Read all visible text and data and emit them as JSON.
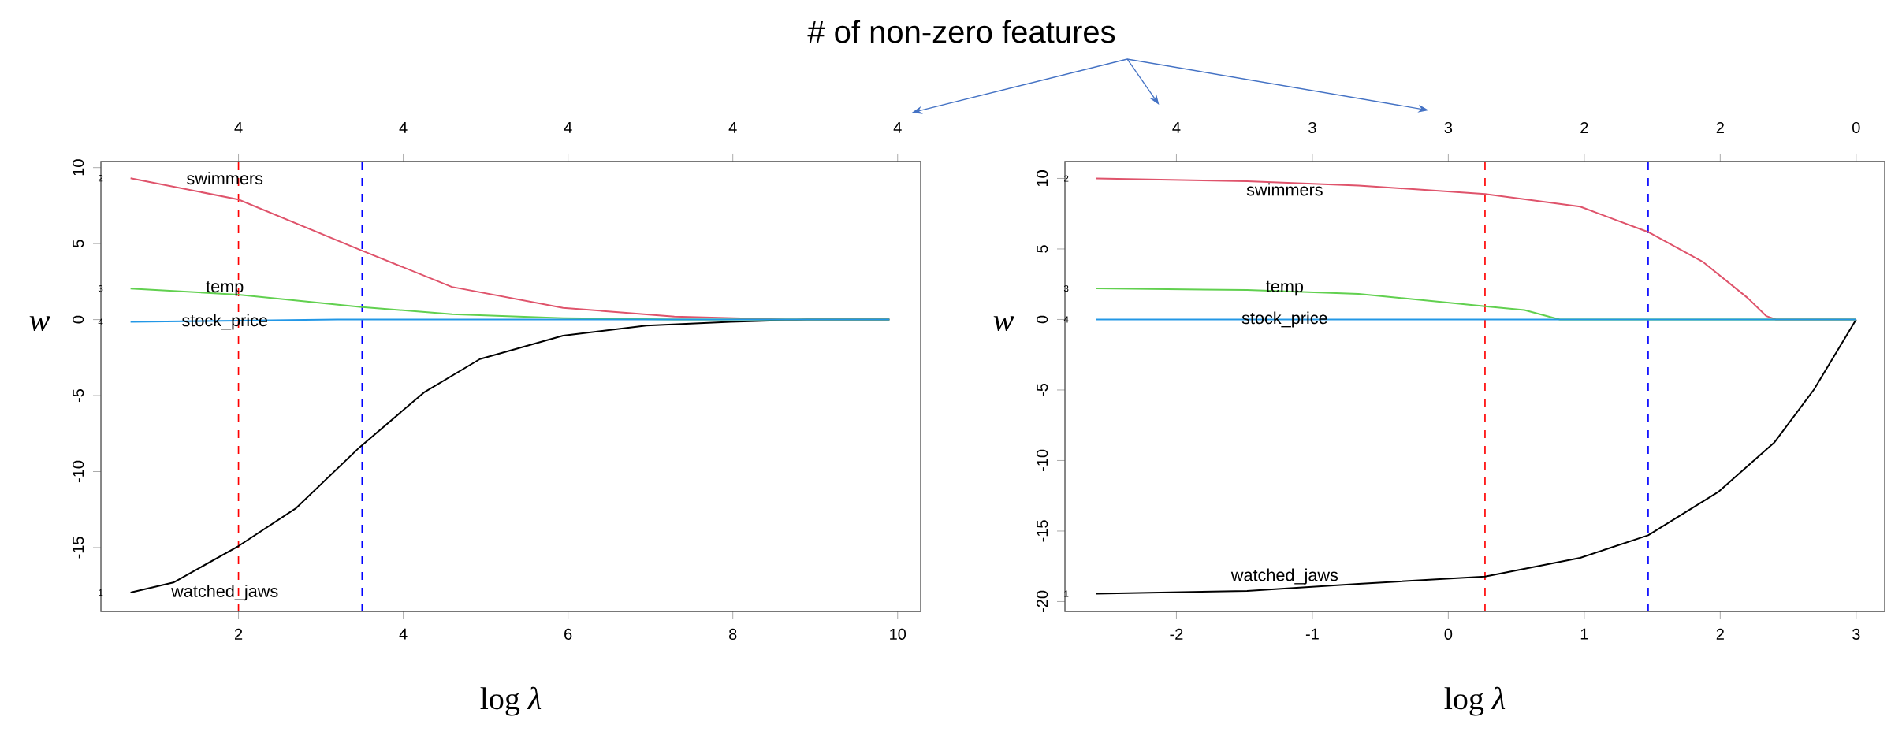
{
  "chart_data": [
    {
      "type": "line",
      "xlabel": "log *λ*",
      "ylabel": "w",
      "xlim": [
        0.33,
        10.28
      ],
      "ylim": [
        -19.2,
        10.4
      ],
      "xticks": [
        2,
        4,
        6,
        8,
        10
      ],
      "yticks": [
        -15,
        -10,
        -5,
        0,
        5,
        10
      ],
      "series": [
        {
          "name": "watched_jaws",
          "color": "#000000",
          "x": [
            0.69,
            1.21,
            2,
            2.7,
            3.47,
            4.25,
            4.93,
            5.94,
            6.95,
            7.97,
            8.9,
            9.9
          ],
          "values": [
            -17.96,
            -17.3,
            -14.9,
            -12.4,
            -8.4,
            -4.8,
            -2.6,
            -1.06,
            -0.4,
            -0.15,
            0,
            0
          ]
        },
        {
          "name": "swimmers",
          "color": "#df536b",
          "x": [
            0.69,
            2,
            3.47,
            4.59,
            5.94,
            7.29,
            8.64,
            9.9
          ],
          "values": [
            9.3,
            7.9,
            4.6,
            2.15,
            0.77,
            0.2,
            0,
            0
          ]
        },
        {
          "name": "temp",
          "color": "#61d04f",
          "x": [
            0.69,
            2,
            3.47,
            4.59,
            5.94,
            7.29,
            9.9
          ],
          "values": [
            2.04,
            1.64,
            0.84,
            0.36,
            0.1,
            0,
            0
          ]
        },
        {
          "name": "stock_price",
          "color": "#2297e6",
          "x": [
            0.69,
            2,
            3.2,
            9.9
          ],
          "values": [
            -0.15,
            -0.07,
            0,
            0
          ]
        }
      ],
      "ref_lines": [
        {
          "axis": "x",
          "value": 2,
          "color": "#ff0000",
          "line_style": "dashed"
        },
        {
          "axis": "x",
          "value": 3.5,
          "color": "#0000ff",
          "line_style": "dashed"
        }
      ],
      "annotations": [
        "# of non-zero features",
        "4",
        "4",
        "4",
        "4",
        "4",
        "1",
        "2",
        "3",
        "4"
      ]
    },
    {
      "type": "line",
      "xlabel": "log *λ*",
      "ylabel": "w",
      "xlim": [
        -2.82,
        3.21
      ],
      "ylim": [
        -20.7,
        11.2
      ],
      "xticks": [
        -2,
        -1,
        0,
        1,
        2,
        3
      ],
      "yticks": [
        -20,
        -15,
        -10,
        -5,
        0,
        5,
        10
      ],
      "series": [
        {
          "name": "watched_jaws",
          "color": "#000000",
          "x": [
            -2.59,
            -1.48,
            -0.66,
            0.27,
            0.97,
            1.47,
            1.99,
            2.4,
            2.69,
            3
          ],
          "values": [
            -19.45,
            -19.25,
            -18.74,
            -18.23,
            -16.9,
            -15.3,
            -12.2,
            -8.7,
            -4.96,
            0
          ]
        },
        {
          "name": "swimmers",
          "color": "#df536b",
          "x": [
            -2.59,
            -1.48,
            -0.66,
            0.27,
            0.97,
            1.47,
            1.87,
            2.2,
            2.34,
            2.41,
            3
          ],
          "values": [
            10.0,
            9.8,
            9.5,
            8.9,
            8.0,
            6.2,
            4.1,
            1.54,
            0.24,
            0,
            0
          ]
        },
        {
          "name": "temp",
          "color": "#61d04f",
          "x": [
            -2.59,
            -1.48,
            -0.66,
            0.27,
            0.56,
            0.82,
            3
          ],
          "values": [
            2.2,
            2.09,
            1.81,
            0.94,
            0.67,
            0,
            0
          ]
        },
        {
          "name": "stock_price",
          "color": "#2297e6",
          "x": [
            -2.59,
            3
          ],
          "values": [
            0,
            0
          ]
        }
      ],
      "ref_lines": [
        {
          "axis": "x",
          "value": 0.27,
          "color": "#ff0000",
          "line_style": "dashed"
        },
        {
          "axis": "x",
          "value": 1.47,
          "color": "#0000ff",
          "line_style": "dashed"
        }
      ],
      "annotations": [
        "4",
        "3",
        "3",
        "2",
        "2",
        "0",
        "1",
        "2",
        "3",
        "4"
      ]
    }
  ]
}
